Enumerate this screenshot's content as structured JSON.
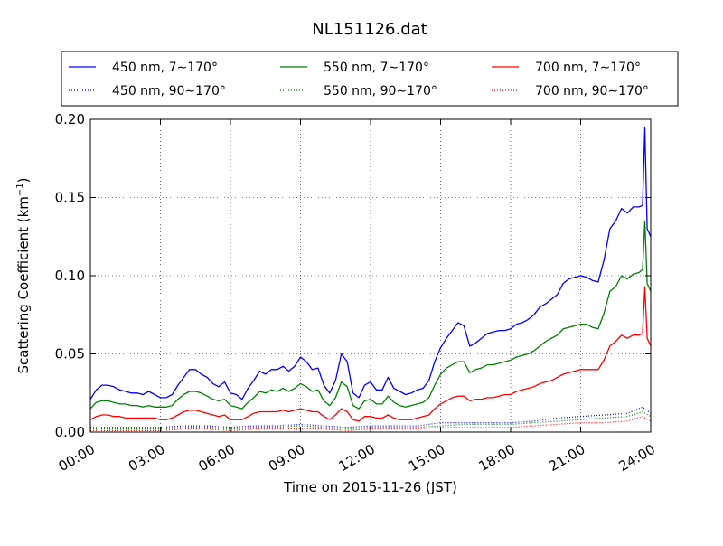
{
  "chart_data": {
    "type": "line",
    "title": "NL151126.dat",
    "xlabel": "Time on 2015-11-26 (JST)",
    "ylabel_main": "Scattering Coefficient (km",
    "ylabel_sup": "−1",
    "ylabel_end": ")",
    "x_unit": "hours",
    "xlim": [
      0,
      24
    ],
    "ylim": [
      0,
      0.2
    ],
    "x_ticks": [
      0,
      3,
      6,
      9,
      12,
      15,
      18,
      21,
      24
    ],
    "x_tick_labels": [
      "00:00",
      "03:00",
      "06:00",
      "09:00",
      "12:00",
      "15:00",
      "18:00",
      "21:00",
      "24:00"
    ],
    "y_ticks": [
      0,
      0.05,
      0.1,
      0.15,
      0.2
    ],
    "y_tick_labels": [
      "0.00",
      "0.05",
      "0.10",
      "0.15",
      "0.20"
    ],
    "grid": true,
    "legend_position": "top",
    "series": [
      {
        "name": "450 nm, 7∼170°",
        "color": "#0000ff",
        "style": "solid",
        "x": [
          0,
          0.25,
          0.5,
          0.75,
          1,
          1.25,
          1.5,
          1.75,
          2,
          2.25,
          2.5,
          2.75,
          3,
          3.25,
          3.5,
          3.75,
          4,
          4.25,
          4.5,
          4.75,
          5,
          5.25,
          5.5,
          5.75,
          6,
          6.25,
          6.5,
          6.75,
          7,
          7.25,
          7.5,
          7.75,
          8,
          8.25,
          8.5,
          8.75,
          9,
          9.25,
          9.5,
          9.75,
          10,
          10.25,
          10.5,
          10.75,
          11,
          11.25,
          11.5,
          11.75,
          12,
          12.25,
          12.5,
          12.75,
          13,
          13.25,
          13.5,
          13.75,
          14,
          14.25,
          14.5,
          14.75,
          15,
          15.25,
          15.5,
          15.75,
          16,
          16.25,
          16.5,
          16.75,
          17,
          17.25,
          17.5,
          17.75,
          18,
          18.25,
          18.5,
          18.75,
          19,
          19.25,
          19.5,
          19.75,
          20,
          20.25,
          20.5,
          20.75,
          21,
          21.25,
          21.5,
          21.75,
          22,
          22.25,
          22.5,
          22.75,
          23,
          23.25,
          23.5,
          23.65,
          23.75,
          23.85,
          24
        ],
        "y": [
          0.021,
          0.027,
          0.03,
          0.03,
          0.029,
          0.027,
          0.026,
          0.025,
          0.025,
          0.024,
          0.026,
          0.024,
          0.022,
          0.022,
          0.024,
          0.03,
          0.035,
          0.04,
          0.04,
          0.037,
          0.035,
          0.031,
          0.029,
          0.032,
          0.025,
          0.024,
          0.021,
          0.028,
          0.033,
          0.039,
          0.037,
          0.04,
          0.04,
          0.042,
          0.039,
          0.042,
          0.048,
          0.045,
          0.04,
          0.041,
          0.03,
          0.025,
          0.033,
          0.05,
          0.045,
          0.025,
          0.022,
          0.03,
          0.032,
          0.027,
          0.027,
          0.035,
          0.028,
          0.026,
          0.024,
          0.025,
          0.027,
          0.028,
          0.033,
          0.045,
          0.054,
          0.06,
          0.065,
          0.07,
          0.068,
          0.055,
          0.057,
          0.06,
          0.063,
          0.064,
          0.065,
          0.065,
          0.066,
          0.069,
          0.07,
          0.072,
          0.075,
          0.08,
          0.082,
          0.085,
          0.088,
          0.095,
          0.098,
          0.099,
          0.1,
          0.099,
          0.097,
          0.096,
          0.11,
          0.13,
          0.135,
          0.143,
          0.14,
          0.144,
          0.144,
          0.145,
          0.195,
          0.13,
          0.125
        ],
        "flat": false
      },
      {
        "name": "450 nm, 90∼170°",
        "color": "#0000ff",
        "style": "dotted",
        "x": [
          0,
          1,
          2,
          3,
          4,
          5,
          6,
          7,
          8,
          9,
          10,
          11,
          12,
          13,
          14,
          15,
          16,
          17,
          18,
          19,
          20,
          21,
          22,
          23,
          23.65,
          24
        ],
        "y": [
          0.003,
          0.003,
          0.003,
          0.003,
          0.004,
          0.004,
          0.003,
          0.004,
          0.004,
          0.005,
          0.004,
          0.003,
          0.004,
          0.004,
          0.004,
          0.006,
          0.006,
          0.006,
          0.006,
          0.007,
          0.009,
          0.01,
          0.011,
          0.012,
          0.016,
          0.012
        ],
        "flat": false
      },
      {
        "name": "550 nm, 7∼170°",
        "color": "#008000",
        "style": "solid",
        "x": [
          0,
          0.25,
          0.5,
          0.75,
          1,
          1.25,
          1.5,
          1.75,
          2,
          2.25,
          2.5,
          2.75,
          3,
          3.25,
          3.5,
          3.75,
          4,
          4.25,
          4.5,
          4.75,
          5,
          5.25,
          5.5,
          5.75,
          6,
          6.25,
          6.5,
          6.75,
          7,
          7.25,
          7.5,
          7.75,
          8,
          8.25,
          8.5,
          8.75,
          9,
          9.25,
          9.5,
          9.75,
          10,
          10.25,
          10.5,
          10.75,
          11,
          11.25,
          11.5,
          11.75,
          12,
          12.25,
          12.5,
          12.75,
          13,
          13.25,
          13.5,
          13.75,
          14,
          14.25,
          14.5,
          14.75,
          15,
          15.25,
          15.5,
          15.75,
          16,
          16.25,
          16.5,
          16.75,
          17,
          17.25,
          17.5,
          17.75,
          18,
          18.25,
          18.5,
          18.75,
          19,
          19.25,
          19.5,
          19.75,
          20,
          20.25,
          20.5,
          20.75,
          21,
          21.25,
          21.5,
          21.75,
          22,
          22.25,
          22.5,
          22.75,
          23,
          23.25,
          23.5,
          23.65,
          23.75,
          23.85,
          24
        ],
        "y": [
          0.015,
          0.019,
          0.02,
          0.02,
          0.019,
          0.018,
          0.018,
          0.017,
          0.017,
          0.016,
          0.017,
          0.016,
          0.016,
          0.016,
          0.017,
          0.021,
          0.024,
          0.026,
          0.026,
          0.025,
          0.023,
          0.021,
          0.02,
          0.021,
          0.017,
          0.016,
          0.015,
          0.019,
          0.022,
          0.026,
          0.025,
          0.027,
          0.026,
          0.028,
          0.026,
          0.028,
          0.031,
          0.029,
          0.026,
          0.027,
          0.02,
          0.017,
          0.022,
          0.032,
          0.029,
          0.017,
          0.015,
          0.02,
          0.021,
          0.018,
          0.018,
          0.023,
          0.019,
          0.017,
          0.016,
          0.017,
          0.018,
          0.019,
          0.022,
          0.03,
          0.037,
          0.041,
          0.043,
          0.045,
          0.045,
          0.038,
          0.04,
          0.041,
          0.043,
          0.043,
          0.044,
          0.045,
          0.046,
          0.048,
          0.049,
          0.05,
          0.052,
          0.055,
          0.058,
          0.06,
          0.062,
          0.066,
          0.067,
          0.068,
          0.069,
          0.069,
          0.067,
          0.066,
          0.076,
          0.09,
          0.093,
          0.1,
          0.098,
          0.101,
          0.102,
          0.104,
          0.135,
          0.095,
          0.09
        ],
        "flat": false
      },
      {
        "name": "550 nm, 90∼170°",
        "color": "#008000",
        "style": "dotted",
        "x": [
          0,
          1,
          2,
          3,
          4,
          5,
          6,
          7,
          8,
          9,
          10,
          11,
          12,
          13,
          14,
          15,
          16,
          17,
          18,
          19,
          20,
          21,
          22,
          23,
          23.65,
          24
        ],
        "y": [
          0.002,
          0.002,
          0.002,
          0.002,
          0.003,
          0.003,
          0.002,
          0.003,
          0.003,
          0.004,
          0.003,
          0.002,
          0.003,
          0.003,
          0.003,
          0.004,
          0.005,
          0.005,
          0.005,
          0.006,
          0.007,
          0.008,
          0.009,
          0.01,
          0.013,
          0.01
        ],
        "flat": false
      },
      {
        "name": "700 nm, 7∼170°",
        "color": "#ff0000",
        "style": "solid",
        "x": [
          0,
          0.25,
          0.5,
          0.75,
          1,
          1.25,
          1.5,
          1.75,
          2,
          2.25,
          2.5,
          2.75,
          3,
          3.25,
          3.5,
          3.75,
          4,
          4.25,
          4.5,
          4.75,
          5,
          5.25,
          5.5,
          5.75,
          6,
          6.25,
          6.5,
          6.75,
          7,
          7.25,
          7.5,
          7.75,
          8,
          8.25,
          8.5,
          8.75,
          9,
          9.25,
          9.5,
          9.75,
          10,
          10.25,
          10.5,
          10.75,
          11,
          11.25,
          11.5,
          11.75,
          12,
          12.25,
          12.5,
          12.75,
          13,
          13.25,
          13.5,
          13.75,
          14,
          14.25,
          14.5,
          14.75,
          15,
          15.25,
          15.5,
          15.75,
          16,
          16.25,
          16.5,
          16.75,
          17,
          17.25,
          17.5,
          17.75,
          18,
          18.25,
          18.5,
          18.75,
          19,
          19.25,
          19.5,
          19.75,
          20,
          20.25,
          20.5,
          20.75,
          21,
          21.25,
          21.5,
          21.75,
          22,
          22.25,
          22.5,
          22.75,
          23,
          23.25,
          23.5,
          23.65,
          23.75,
          23.85,
          24
        ],
        "y": [
          0.008,
          0.01,
          0.011,
          0.011,
          0.01,
          0.01,
          0.009,
          0.009,
          0.009,
          0.009,
          0.009,
          0.009,
          0.008,
          0.008,
          0.009,
          0.011,
          0.013,
          0.014,
          0.014,
          0.013,
          0.012,
          0.011,
          0.01,
          0.011,
          0.008,
          0.008,
          0.008,
          0.01,
          0.012,
          0.013,
          0.013,
          0.013,
          0.013,
          0.014,
          0.013,
          0.014,
          0.015,
          0.014,
          0.013,
          0.013,
          0.01,
          0.008,
          0.011,
          0.015,
          0.013,
          0.008,
          0.007,
          0.01,
          0.01,
          0.009,
          0.009,
          0.011,
          0.009,
          0.008,
          0.008,
          0.008,
          0.009,
          0.01,
          0.011,
          0.015,
          0.018,
          0.02,
          0.022,
          0.023,
          0.023,
          0.02,
          0.021,
          0.021,
          0.022,
          0.022,
          0.023,
          0.024,
          0.024,
          0.026,
          0.027,
          0.028,
          0.029,
          0.031,
          0.032,
          0.033,
          0.035,
          0.037,
          0.038,
          0.039,
          0.04,
          0.04,
          0.04,
          0.04,
          0.046,
          0.055,
          0.058,
          0.062,
          0.06,
          0.062,
          0.062,
          0.063,
          0.093,
          0.06,
          0.055
        ],
        "flat": false
      },
      {
        "name": "700 nm, 90∼170°",
        "color": "#ff0000",
        "style": "dotted",
        "x": [
          0,
          1,
          2,
          3,
          4,
          5,
          6,
          7,
          8,
          9,
          10,
          11,
          12,
          13,
          14,
          15,
          16,
          17,
          18,
          19,
          20,
          21,
          22,
          23,
          23.65,
          24
        ],
        "y": [
          0.001,
          0.001,
          0.001,
          0.001,
          0.002,
          0.002,
          0.001,
          0.002,
          0.002,
          0.002,
          0.002,
          0.001,
          0.002,
          0.002,
          0.002,
          0.003,
          0.003,
          0.003,
          0.003,
          0.004,
          0.005,
          0.006,
          0.006,
          0.007,
          0.01,
          0.007
        ],
        "flat": false
      }
    ]
  }
}
